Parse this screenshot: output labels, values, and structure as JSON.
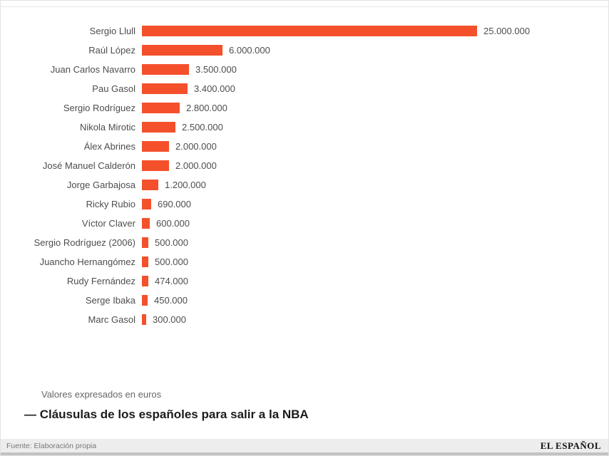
{
  "chart_data": {
    "type": "bar",
    "orientation": "horizontal",
    "title": "— Cláusulas de los españoles para salir a la NBA",
    "note": "Valores expresados en euros",
    "unit": "euros",
    "bar_color": "#f4502c",
    "xlim": [
      0,
      25000000
    ],
    "grid": false,
    "legend": false,
    "value_label_position": "end-of-bar",
    "categories": [
      "Sergio Llull",
      "Raúl López",
      "Juan Carlos Navarro",
      "Pau Gasol",
      "Sergio Rodríguez",
      "Nikola Mirotic",
      "Álex Abrines",
      "José Manuel Calderón",
      "Jorge Garbajosa",
      "Ricky Rubio",
      "Víctor Claver",
      "Sergio Rodríguez (2006)",
      "Juancho Hernangómez",
      "Rudy Fernández",
      "Serge Ibaka",
      "Marc Gasol"
    ],
    "values": [
      25000000,
      6000000,
      3500000,
      3400000,
      2800000,
      2500000,
      2000000,
      2000000,
      1200000,
      690000,
      600000,
      500000,
      500000,
      474000,
      450000,
      300000
    ],
    "value_labels": [
      "25.000.000",
      "6.000.000",
      "3.500.000",
      "3.400.000",
      "2.800.000",
      "2.500.000",
      "2.000.000",
      "2.000.000",
      "1.200.000",
      "690.000",
      "600.000",
      "500.000",
      "500.000",
      "474.000",
      "450.000",
      "300.000"
    ]
  },
  "footer": {
    "source": "Fuente: Elaboración propia",
    "brand": "EL ESPAÑOL"
  }
}
